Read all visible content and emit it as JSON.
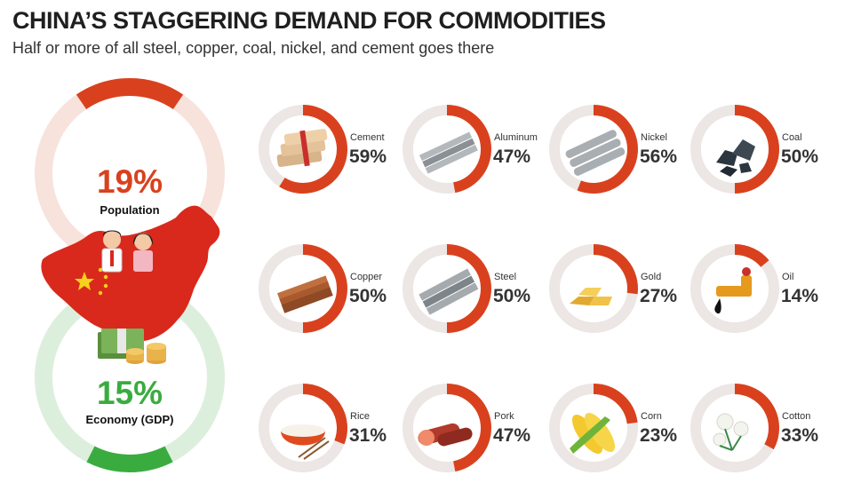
{
  "title": "CHINA’S STAGGERING DEMAND FOR COMMODITIES",
  "subtitle": "Half or more of all steel, copper, coal, nickel, and cement goes there",
  "population": {
    "value": "19%",
    "label": "Population",
    "fraction": 0.19,
    "color": "#d9411e",
    "track": "#f7e3dc"
  },
  "economy": {
    "value": "15%",
    "label": "Economy (GDP)",
    "fraction": 0.15,
    "color": "#3aac3f",
    "track": "#dcefdc"
  },
  "ring_color": "#d9411e",
  "ring_track": "#ece6e4",
  "commodities": [
    {
      "name": "Cement",
      "value": "59%",
      "fraction": 0.59,
      "icon": "cement-bags-icon"
    },
    {
      "name": "Aluminum",
      "value": "47%",
      "fraction": 0.47,
      "icon": "aluminum-bars-icon"
    },
    {
      "name": "Nickel",
      "value": "56%",
      "fraction": 0.56,
      "icon": "nickel-pipes-icon"
    },
    {
      "name": "Coal",
      "value": "50%",
      "fraction": 0.5,
      "icon": "coal-lumps-icon"
    },
    {
      "name": "Copper",
      "value": "50%",
      "fraction": 0.5,
      "icon": "copper-sheets-icon"
    },
    {
      "name": "Steel",
      "value": "50%",
      "fraction": 0.5,
      "icon": "steel-beams-icon"
    },
    {
      "name": "Gold",
      "value": "27%",
      "fraction": 0.27,
      "icon": "gold-bars-icon"
    },
    {
      "name": "Oil",
      "value": "14%",
      "fraction": 0.14,
      "icon": "oil-pipe-icon"
    },
    {
      "name": "Rice",
      "value": "31%",
      "fraction": 0.31,
      "icon": "rice-bowl-icon"
    },
    {
      "name": "Pork",
      "value": "47%",
      "fraction": 0.47,
      "icon": "pork-sausage-icon"
    },
    {
      "name": "Corn",
      "value": "23%",
      "fraction": 0.23,
      "icon": "corn-cobs-icon"
    },
    {
      "name": "Cotton",
      "value": "33%",
      "fraction": 0.33,
      "icon": "cotton-plant-icon"
    }
  ]
}
